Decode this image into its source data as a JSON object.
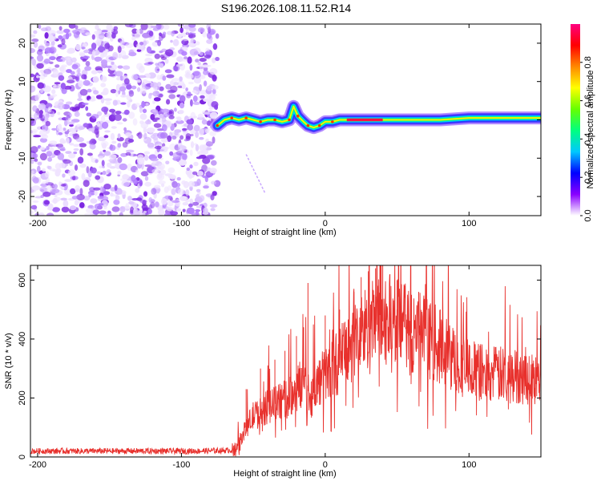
{
  "title": "S196.2026.108.11.52.R14",
  "chart_data": [
    {
      "type": "heatmap",
      "name": "spectrogram",
      "xlabel": "Height of straight line (km)",
      "ylabel": "Frequency (Hz)",
      "xlim": [
        -205,
        150
      ],
      "ylim": [
        -25,
        25
      ],
      "xticks": [
        -200,
        -100,
        0,
        100
      ],
      "yticks": [
        -20,
        -10,
        0,
        10,
        20
      ],
      "noise_region_x": [
        -205,
        -75
      ],
      "signal_track": [
        {
          "x": -75,
          "y": -1.5
        },
        {
          "x": -70,
          "y": 0
        },
        {
          "x": -65,
          "y": 0.5
        },
        {
          "x": -60,
          "y": 0
        },
        {
          "x": -55,
          "y": 0.5
        },
        {
          "x": -50,
          "y": 0
        },
        {
          "x": -45,
          "y": -0.5
        },
        {
          "x": -40,
          "y": 0
        },
        {
          "x": -35,
          "y": 0
        },
        {
          "x": -30,
          "y": -0.5
        },
        {
          "x": -25,
          "y": 0
        },
        {
          "x": -22,
          "y": 3.5
        },
        {
          "x": -19,
          "y": 1
        },
        {
          "x": -15,
          "y": -0.5
        },
        {
          "x": -12,
          "y": -1.5
        },
        {
          "x": -8,
          "y": -2
        },
        {
          "x": -4,
          "y": -1.5
        },
        {
          "x": 0,
          "y": -0.5
        },
        {
          "x": 5,
          "y": -0.5
        },
        {
          "x": 10,
          "y": 0
        },
        {
          "x": 20,
          "y": 0
        },
        {
          "x": 40,
          "y": 0
        },
        {
          "x": 60,
          "y": 0
        },
        {
          "x": 80,
          "y": 0
        },
        {
          "x": 100,
          "y": 0.5
        },
        {
          "x": 120,
          "y": 0.5
        },
        {
          "x": 150,
          "y": 0.5
        }
      ],
      "colorbar": {
        "label": "Normalized spectral amplitude",
        "range": [
          0,
          1
        ],
        "ticks": [
          "0.0",
          "0.2",
          "0.4",
          "0.6",
          "0.8"
        ],
        "colors": [
          "#ffffff",
          "#8a00ff",
          "#0000ff",
          "#00c8ff",
          "#00ff80",
          "#66ff00",
          "#ffff00",
          "#ff8800",
          "#ff0000",
          "#ff0080"
        ]
      }
    },
    {
      "type": "line",
      "name": "snr",
      "xlabel": "Height of straight line (km)",
      "ylabel": "SNR (10 * v/v)",
      "xlim": [
        -205,
        150
      ],
      "ylim": [
        0,
        650
      ],
      "xticks": [
        -200,
        -100,
        0,
        100
      ],
      "yticks": [
        0,
        200,
        400,
        600
      ],
      "color": "#e8302c",
      "series": [
        {
          "name": "SNR",
          "x": [
            -205,
            -180,
            -150,
            -120,
            -90,
            -70,
            -62,
            -55,
            -50,
            -45,
            -40,
            -35,
            -30,
            -25,
            -20,
            -15,
            -10,
            -5,
            0,
            5,
            10,
            15,
            20,
            25,
            30,
            35,
            40,
            45,
            50,
            55,
            60,
            65,
            70,
            75,
            80,
            85,
            90,
            95,
            100,
            110,
            120,
            130,
            140,
            150
          ],
          "y": [
            20,
            20,
            20,
            20,
            20,
            22,
            25,
            100,
            140,
            150,
            170,
            180,
            190,
            200,
            230,
            260,
            200,
            250,
            280,
            300,
            330,
            360,
            390,
            420,
            440,
            455,
            460,
            460,
            450,
            440,
            420,
            420,
            410,
            390,
            370,
            350,
            330,
            310,
            300,
            285,
            280,
            275,
            270,
            260
          ],
          "spikes": [
            {
              "x": -55,
              "y": 230
            },
            {
              "x": -45,
              "y": 300
            },
            {
              "x": -35,
              "y": 330
            },
            {
              "x": -28,
              "y": 360
            },
            {
              "x": -20,
              "y": 410
            },
            {
              "x": -15,
              "y": 440
            },
            {
              "x": -12,
              "y": 590
            },
            {
              "x": 0,
              "y": 480
            },
            {
              "x": 10,
              "y": 500
            },
            {
              "x": 20,
              "y": 560
            },
            {
              "x": 25,
              "y": 610
            },
            {
              "x": 30,
              "y": 630
            },
            {
              "x": 35,
              "y": 640
            },
            {
              "x": 40,
              "y": 650
            },
            {
              "x": 45,
              "y": 620
            },
            {
              "x": 50,
              "y": 600
            },
            {
              "x": 55,
              "y": 570
            },
            {
              "x": 60,
              "y": 550
            },
            {
              "x": 65,
              "y": 560
            },
            {
              "x": 70,
              "y": 540
            },
            {
              "x": 80,
              "y": 500
            }
          ]
        }
      ]
    }
  ]
}
